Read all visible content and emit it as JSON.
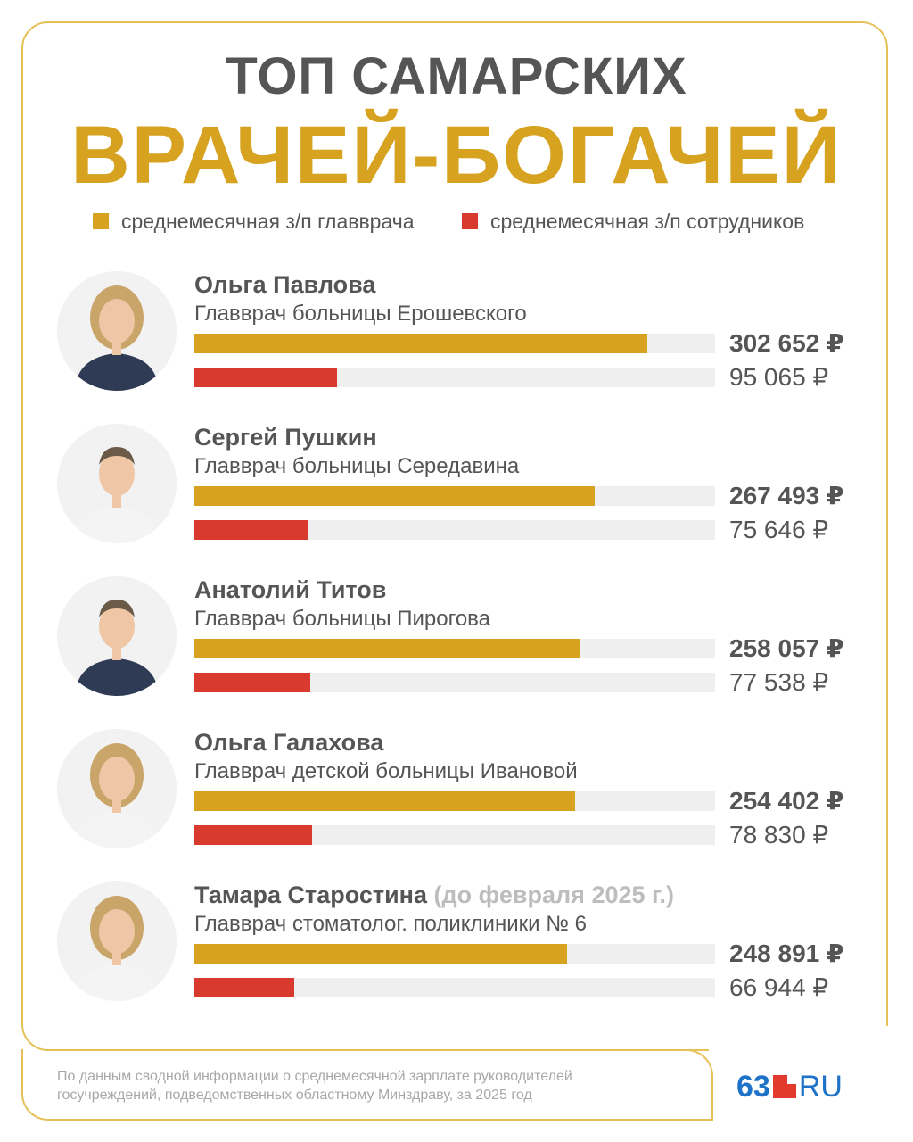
{
  "title_line1": "ТОП САМАРСКИХ",
  "title_line2": "ВРАЧЕЙ-БОГАЧЕЙ",
  "legend": [
    {
      "label": "среднемесячная з/п главврача",
      "color": "#d6a21f"
    },
    {
      "label": "среднемесячная з/п сотрудников",
      "color": "#d93a2e"
    }
  ],
  "chart_data": {
    "type": "bar",
    "orientation": "horizontal",
    "grid": false,
    "legend_position": "top",
    "categories": [
      "Ольга Павлова",
      "Сергей Пушкин",
      "Анатолий Титов",
      "Ольга Галахова",
      "Тамара Старостина"
    ],
    "series": [
      {
        "name": "среднемесячная з/п главврача",
        "color": "#d6a21f",
        "values": [
          302652,
          267493,
          258057,
          254402,
          248891
        ]
      },
      {
        "name": "среднемесячная з/п сотрудников",
        "color": "#d93a2e",
        "values": [
          95065,
          75646,
          77538,
          78830,
          66944
        ]
      }
    ],
    "xlim": [
      0,
      348000
    ]
  },
  "entries": [
    {
      "name": "Ольга Павлова",
      "note": "",
      "role": "Главврач больницы Ерошевского",
      "value_head": "302 652 ₽",
      "value_staff": "95 065 ₽",
      "photo": "woman-portrait-icon"
    },
    {
      "name": "Сергей Пушкин",
      "note": "",
      "role": "Главврач больницы Середавина",
      "value_head": "267 493 ₽",
      "value_staff": "75 646 ₽",
      "photo": "man-portrait-icon"
    },
    {
      "name": "Анатолий Титов",
      "note": "",
      "role": "Главврач больницы Пирогова",
      "value_head": "258 057 ₽",
      "value_staff": "77 538 ₽",
      "photo": "man-portrait-icon"
    },
    {
      "name": "Ольга Галахова",
      "note": "",
      "role": "Главврач детской больницы Ивановой",
      "value_head": "254 402 ₽",
      "value_staff": "78 830 ₽",
      "photo": "woman-portrait-icon"
    },
    {
      "name": "Тамара Старостина",
      "note": "(до февраля 2025 г.)",
      "role": "Главврач стоматолог. поликлиники № 6",
      "value_head": "248 891 ₽",
      "value_staff": "66 944 ₽",
      "photo": "woman-portrait-icon"
    }
  ],
  "footer_line1": "По данным сводной информации о среднемесячной зарплате руководителей",
  "footer_line2": "госучреждений, подведомственных областному Минздраву, за 2025 год",
  "logo": {
    "number": "63",
    "suffix": "RU"
  }
}
